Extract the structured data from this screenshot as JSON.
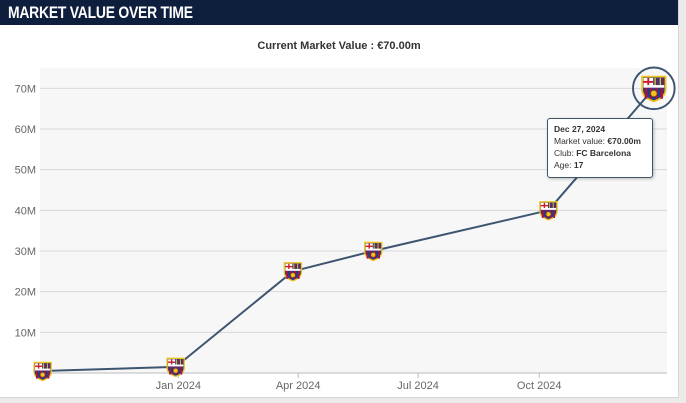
{
  "header": {
    "title": "MARKET VALUE OVER TIME"
  },
  "subtitle": "Current Market Value : €70.00m",
  "tooltip": {
    "date": "Dec 27, 2024",
    "market_value_label": "Market value:",
    "market_value": "€70.00m",
    "club_label": "Club:",
    "club": "FC Barcelona",
    "age_label": "Age:",
    "age": "17"
  },
  "colors": {
    "header_bg": "#0e1e3d",
    "line": "#3e5570",
    "plot_bg": "#f7f7f7",
    "grid": "#d8d8d8",
    "crest_blue": "#1a3f8f",
    "crest_red": "#a8123d",
    "crest_gold": "#f2c21a"
  },
  "chart_data": {
    "type": "line",
    "title": "",
    "xlabel": "",
    "ylabel": "",
    "ylim": [
      0,
      75
    ],
    "y_ticks": [
      10,
      20,
      30,
      40,
      50,
      60,
      70
    ],
    "y_tick_labels": [
      "10M",
      "20M",
      "30M",
      "40M",
      "50M",
      "60M",
      "70M"
    ],
    "x_ticks": [
      "2024-01-01",
      "2024-04-01",
      "2024-07-01",
      "2024-10-01"
    ],
    "x_tick_labels": [
      "Jan 2024",
      "Apr 2024",
      "Jul 2024",
      "Oct 2024"
    ],
    "x_range": [
      "2023-09-18",
      "2025-01-06"
    ],
    "marker_icon": "fc-barcelona-crest-icon",
    "grid": true,
    "points": [
      {
        "x": "2023-09-20",
        "y": 0.5
      },
      {
        "x": "2023-12-30",
        "y": 1.5
      },
      {
        "x": "2024-03-28",
        "y": 25
      },
      {
        "x": "2024-05-28",
        "y": 30
      },
      {
        "x": "2024-10-08",
        "y": 40
      },
      {
        "x": "2024-12-27",
        "y": 70
      }
    ]
  }
}
